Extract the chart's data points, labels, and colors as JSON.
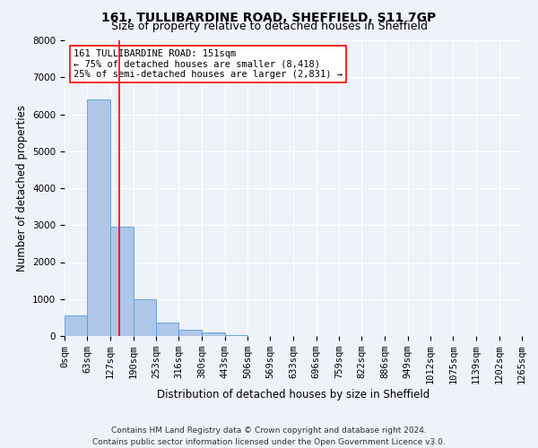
{
  "title_line1": "161, TULLIBARDINE ROAD, SHEFFIELD, S11 7GP",
  "title_line2": "Size of property relative to detached houses in Sheffield",
  "xlabel": "Distribution of detached houses by size in Sheffield",
  "ylabel": "Number of detached properties",
  "bin_edges": [
    0,
    63,
    127,
    190,
    253,
    316,
    380,
    443,
    506,
    569,
    633,
    696,
    759,
    822,
    886,
    949,
    1012,
    1075,
    1139,
    1202,
    1265
  ],
  "bar_heights": [
    550,
    6400,
    2950,
    1000,
    370,
    175,
    90,
    30,
    10,
    5,
    3,
    2,
    1,
    1,
    0,
    0,
    0,
    0,
    0,
    0
  ],
  "bar_color": "#aec6e8",
  "bar_edge_color": "#5a9fd4",
  "red_line_x": 151,
  "ylim": [
    0,
    8000
  ],
  "yticks": [
    0,
    1000,
    2000,
    3000,
    4000,
    5000,
    6000,
    7000,
    8000
  ],
  "annotation_line1": "161 TULLIBARDINE ROAD: 151sqm",
  "annotation_line2": "← 75% of detached houses are smaller (8,418)",
  "annotation_line3": "25% of semi-detached houses are larger (2,831) →",
  "footer_line1": "Contains HM Land Registry data © Crown copyright and database right 2024.",
  "footer_line2": "Contains public sector information licensed under the Open Government Licence v3.0.",
  "background_color": "#eef2f9",
  "plot_bg_color": "#eef2f9",
  "grid_color": "#ffffff",
  "xtick_labels": [
    "0sqm",
    "63sqm",
    "127sqm",
    "190sqm",
    "253sqm",
    "316sqm",
    "380sqm",
    "443sqm",
    "506sqm",
    "569sqm",
    "633sqm",
    "696sqm",
    "759sqm",
    "822sqm",
    "886sqm",
    "949sqm",
    "1012sqm",
    "1075sqm",
    "1139sqm",
    "1202sqm",
    "1265sqm"
  ],
  "title_fontsize": 10,
  "subtitle_fontsize": 9,
  "axis_label_fontsize": 8.5,
  "tick_fontsize": 7.5,
  "annotation_fontsize": 7.5,
  "footer_fontsize": 6.5
}
